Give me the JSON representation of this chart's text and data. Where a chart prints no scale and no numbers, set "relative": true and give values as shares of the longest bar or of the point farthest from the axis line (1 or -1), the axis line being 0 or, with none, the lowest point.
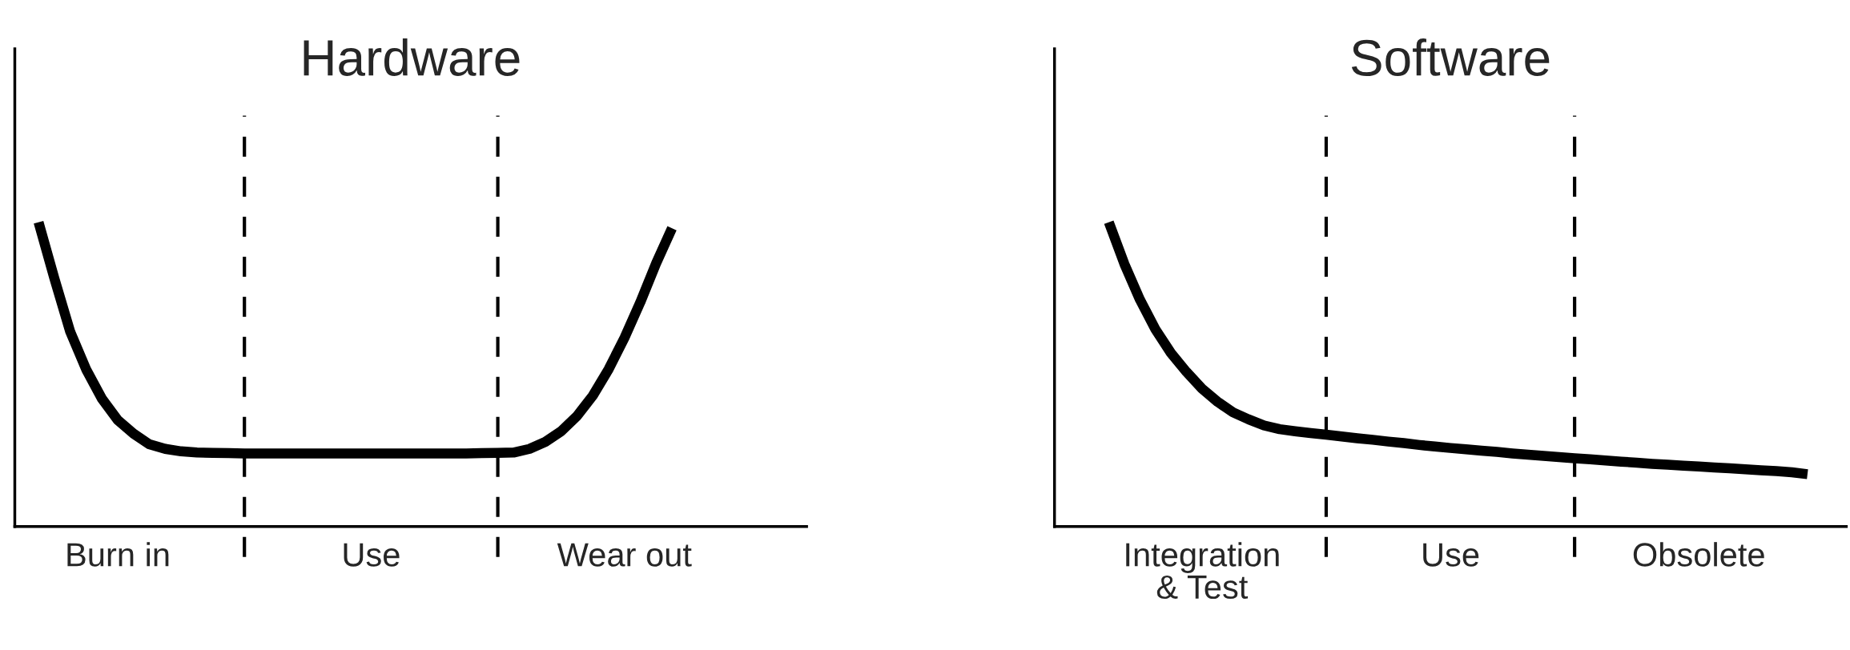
{
  "chart_data": [
    {
      "type": "line",
      "title": "Hardware",
      "relative": true,
      "grid": false,
      "legend": false,
      "categories": [
        null,
        null,
        null,
        null,
        null,
        null,
        "Burn in",
        null,
        null,
        null,
        null,
        null,
        null,
        null,
        null,
        null,
        null,
        null,
        null,
        null,
        null,
        null,
        "Use",
        null,
        null,
        null,
        null,
        null,
        null,
        null,
        null,
        null,
        null,
        null,
        null,
        null,
        null,
        null,
        "Wear out",
        null,
        null,
        null,
        null,
        null,
        null,
        null,
        null,
        null,
        null,
        null
      ],
      "series": [
        {
          "color": "#000000",
          "values": [
            null,
            1.0,
            0.815,
            0.64,
            0.517,
            0.42,
            0.35,
            0.305,
            0.27,
            0.255,
            0.247,
            0.243,
            0.242,
            0.241,
            0.24,
            0.24,
            0.24,
            0.24,
            0.24,
            0.24,
            0.24,
            0.24,
            0.24,
            0.24,
            0.24,
            0.24,
            0.24,
            0.24,
            0.24,
            0.241,
            0.242,
            0.243,
            0.255,
            0.278,
            0.313,
            0.363,
            0.43,
            0.517,
            0.62,
            0.737,
            0.865,
            0.98,
            null,
            null,
            null,
            null,
            null,
            null,
            null,
            null
          ]
        }
      ]
    },
    {
      "type": "line",
      "title": "Software",
      "relative": true,
      "grid": false,
      "legend": false,
      "categories": [
        null,
        null,
        null,
        null,
        null,
        null,
        null,
        null,
        null,
        "Integration\n& Test",
        null,
        null,
        null,
        null,
        null,
        null,
        null,
        null,
        null,
        null,
        null,
        null,
        null,
        null,
        null,
        "Use",
        null,
        null,
        null,
        null,
        null,
        null,
        null,
        null,
        null,
        null,
        null,
        null,
        null,
        null,
        null,
        "Obsolete",
        null,
        null,
        null,
        null,
        null,
        null,
        null,
        null,
        null
      ],
      "series": [
        {
          "color": "#000000",
          "values": [
            null,
            null,
            null,
            1.0,
            0.863,
            0.746,
            0.648,
            0.57,
            0.508,
            0.453,
            0.41,
            0.375,
            0.352,
            0.332,
            0.32,
            0.313,
            0.307,
            0.302,
            0.296,
            0.29,
            0.285,
            0.279,
            0.274,
            0.268,
            0.263,
            0.258,
            0.254,
            0.249,
            0.245,
            0.24,
            0.236,
            0.232,
            0.228,
            0.224,
            0.221,
            0.217,
            0.213,
            0.21,
            0.206,
            0.203,
            0.2,
            0.197,
            0.194,
            0.191,
            0.188,
            0.185,
            0.182,
            0.178,
            0.172,
            null,
            null
          ]
        }
      ]
    }
  ]
}
